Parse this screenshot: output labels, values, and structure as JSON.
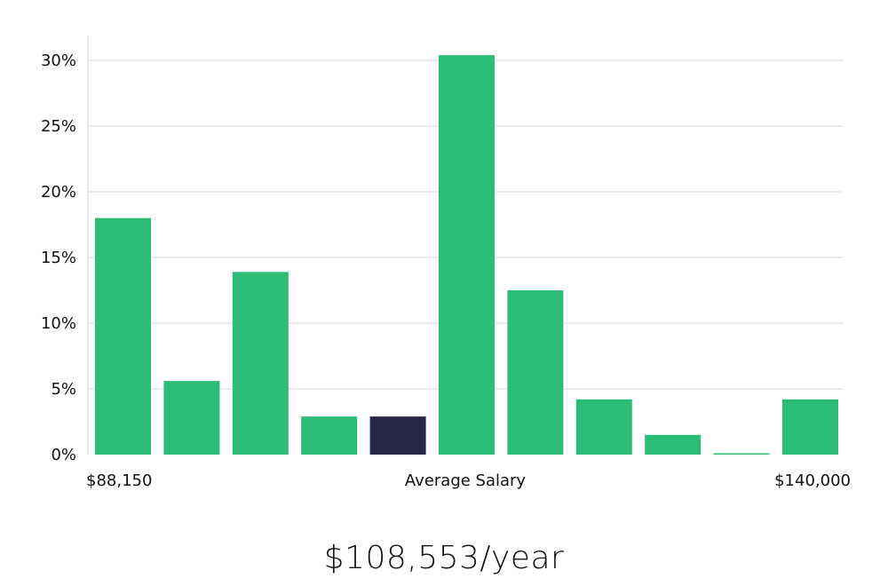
{
  "chart_data": {
    "type": "bar",
    "values": [
      18,
      5.6,
      13.9,
      2.9,
      2.9,
      30.4,
      12.5,
      4.2,
      1.5,
      0.1,
      4.2
    ],
    "highlight_index": 4,
    "yticks": [
      "0%",
      "5%",
      "10%",
      "15%",
      "20%",
      "25%",
      "30%"
    ],
    "ylim": [
      0,
      32
    ],
    "x_min_label": "$88,150",
    "x_center_label": "Average Salary",
    "x_max_label": "$140,000",
    "grid": true,
    "colors": {
      "bar": "#2bbd76",
      "highlight": "#28254a"
    }
  },
  "salary": {
    "value": "$108,553/year"
  }
}
